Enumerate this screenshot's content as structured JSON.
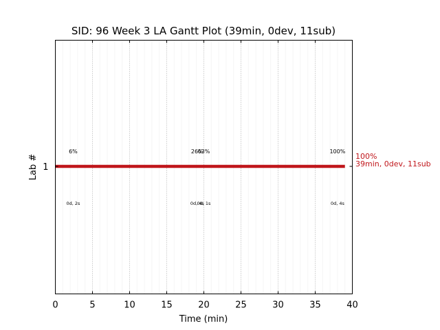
{
  "chart_data": {
    "type": "gantt",
    "title": "SID: 96 Week 3 LA Gantt Plot (39min, 0dev, 11sub)",
    "xlabel": "Time (min)",
    "ylabel": "Lab #",
    "xlim": [
      0,
      40
    ],
    "x_ticks": [
      "0",
      "5",
      "10",
      "15",
      "20",
      "25",
      "30",
      "35",
      "40"
    ],
    "y_ticks": [
      "1"
    ],
    "grid": "vertical dotted",
    "bar": {
      "lab": 1,
      "start": 0,
      "end": 39,
      "color": "#c0161b"
    },
    "end_label": {
      "percent": "100%",
      "summary": "39min, 0dev, 11sub",
      "color": "#c0161b"
    },
    "milestones": [
      {
        "x": 2.4,
        "percent": "6%",
        "detail": "0d, 2s"
      },
      {
        "x": 19.1,
        "percent": "26%",
        "detail": "0d, 4s"
      },
      {
        "x": 20.0,
        "percent": "63%",
        "detail": "0d, 1s"
      },
      {
        "x": 38.0,
        "percent": "100%",
        "detail": "0d, 4s"
      }
    ]
  }
}
